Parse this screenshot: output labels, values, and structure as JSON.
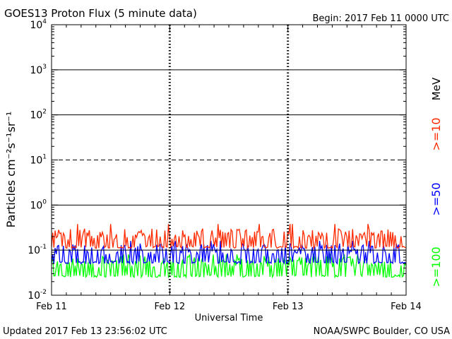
{
  "chart_data": {
    "type": "line",
    "title": "GOES13 Proton Flux (5 minute data)",
    "begin_label": "Begin: 2017 Feb 11 0000 UTC",
    "xlabel": "Universal Time",
    "ylabel": "Particles cm⁻²s⁻¹sr⁻¹",
    "yscale": "log",
    "ylim": [
      0.01,
      10000
    ],
    "y_ticks": [
      {
        "value": 0.01,
        "base": "10",
        "exp": "-2"
      },
      {
        "value": 0.1,
        "base": "10",
        "exp": "-1"
      },
      {
        "value": 1,
        "base": "10",
        "exp": "0"
      },
      {
        "value": 10,
        "base": "10",
        "exp": "1"
      },
      {
        "value": 100,
        "base": "10",
        "exp": "2"
      },
      {
        "value": 1000,
        "base": "10",
        "exp": "3"
      },
      {
        "value": 10000,
        "base": "10",
        "exp": "4"
      }
    ],
    "x_ticks": [
      "Feb 11",
      "Feb 12",
      "Feb 13",
      "Feb 14"
    ],
    "x_range_days": [
      0,
      3
    ],
    "data_end_day": 2.997,
    "threshold_lines": [
      {
        "value": 0.1,
        "style": "solid"
      },
      {
        "value": 1,
        "style": "solid"
      },
      {
        "value": 10,
        "style": "dashed"
      },
      {
        "value": 100,
        "style": "solid"
      },
      {
        "value": 1000,
        "style": "solid"
      }
    ],
    "series": [
      {
        "name": ">=10",
        "color": "#ff2a00",
        "typical_min": 0.11,
        "typical_max": 0.3,
        "peak": 0.38
      },
      {
        "name": ">=50",
        "color": "#0000ff",
        "typical_min": 0.05,
        "typical_max": 0.14,
        "peak": 0.16
      },
      {
        "name": ">=100",
        "color": "#00ff00",
        "typical_min": 0.025,
        "typical_max": 0.075,
        "peak": 0.08
      }
    ],
    "unit_label": "MeV",
    "grid": true
  },
  "footer": {
    "updated": "Updated 2017 Feb 13 23:56:02 UTC",
    "source": "NOAA/SWPC Boulder, CO USA"
  }
}
